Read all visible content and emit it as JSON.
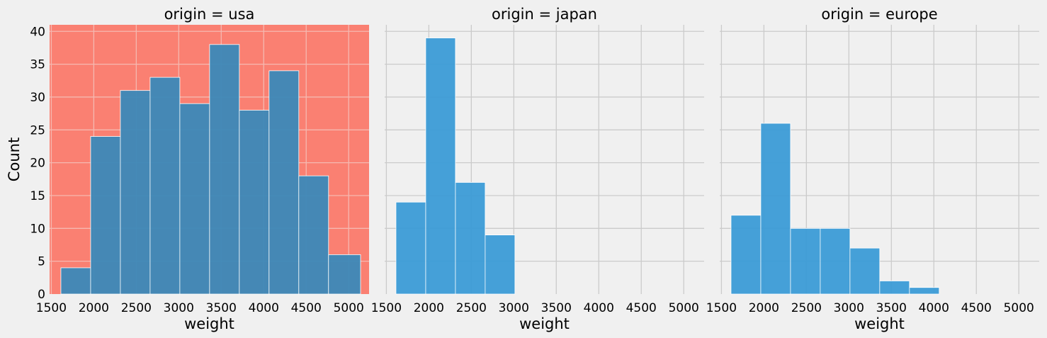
{
  "chart_data": {
    "type": "bar",
    "ylabel": "Count",
    "ylim": [
      0,
      41
    ],
    "xlim": [
      1480,
      5240
    ],
    "yticks": [
      0,
      5,
      10,
      15,
      20,
      25,
      30,
      35,
      40
    ],
    "xticks": [
      1500,
      2000,
      2500,
      3000,
      3500,
      4000,
      4500,
      5000
    ],
    "grid": true,
    "bin_edges": [
      1613,
      1963,
      2313,
      2663,
      3013,
      3363,
      3713,
      4063,
      4413,
      4763,
      5140
    ],
    "bar_color": "#3b9bd6",
    "usa_background_color": "#fa8072",
    "usa_bar_color": "#3b88b8",
    "panels": [
      {
        "title": "origin = usa",
        "xlabel": "weight",
        "counts": [
          4,
          24,
          31,
          33,
          29,
          38,
          28,
          34,
          18,
          6
        ]
      },
      {
        "title": "origin = japan",
        "xlabel": "weight",
        "counts": [
          14,
          39,
          17,
          9,
          0,
          0,
          0,
          0,
          0,
          0
        ]
      },
      {
        "title": "origin = europe",
        "xlabel": "weight",
        "counts": [
          12,
          26,
          10,
          10,
          7,
          2,
          1,
          0,
          0,
          0
        ]
      }
    ]
  }
}
